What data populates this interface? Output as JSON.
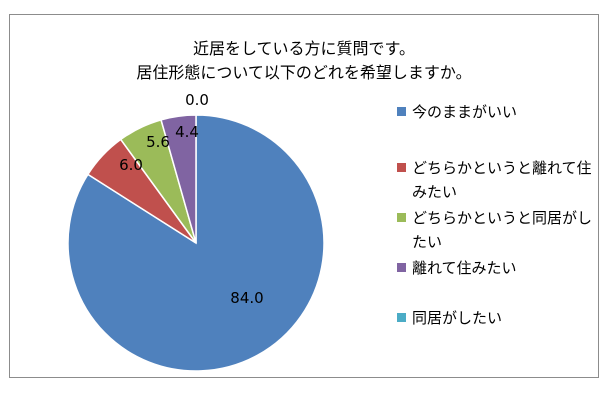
{
  "chart_data": {
    "type": "pie",
    "title_lines": [
      "近居をしている方に質問です。",
      "居住形態について以下のどれを希望しますか。"
    ],
    "slices": [
      {
        "label": "今のままがいい",
        "value": 84.0,
        "display": "84.0",
        "color": "#4f81bd"
      },
      {
        "label": "どちらかというと離れて住みたい",
        "value": 6.0,
        "display": "6.0",
        "color": "#c0504d"
      },
      {
        "label": "どちらかというと同居がしたい",
        "value": 5.6,
        "display": "5.6",
        "color": "#9bbb59"
      },
      {
        "label": "離れて住みたい",
        "value": 4.4,
        "display": "4.4",
        "color": "#8064a2"
      },
      {
        "label": "同居がしたい",
        "value": 0.0,
        "display": "0.0",
        "color": "#4bacc6"
      }
    ],
    "legend_position": "right",
    "start_angle": "top",
    "direction": "clockwise"
  }
}
